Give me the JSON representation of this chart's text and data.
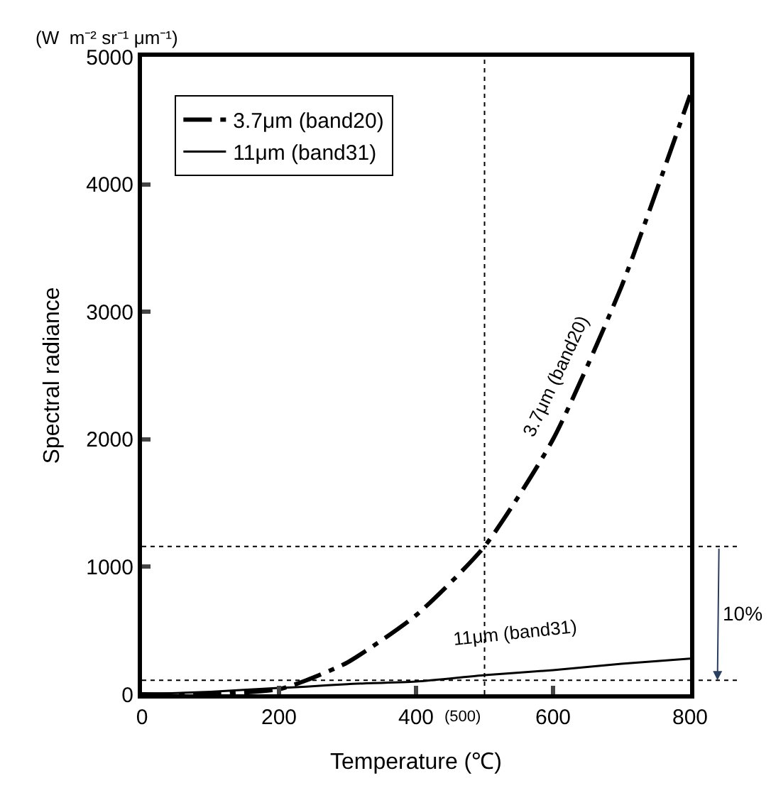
{
  "chart_data": {
    "type": "line",
    "xlabel": "Temperature (℃)",
    "ylabel": "Spectral radiance",
    "x": [
      0,
      100,
      200,
      240,
      300,
      400,
      500,
      600,
      700,
      800
    ],
    "series": [
      {
        "name": "3.7μm (band20)",
        "color": "#000000",
        "line_style": "dashed",
        "values": [
          0,
          0,
          40,
          110,
          250,
          620,
          1160,
          2000,
          3200,
          4700
        ]
      },
      {
        "name": "11μm (band31)",
        "color": "#000000",
        "line_style": "solid",
        "values": [
          0,
          20,
          50,
          60,
          80,
          100,
          150,
          190,
          240,
          280
        ]
      }
    ],
    "xlim": [
      0,
      800
    ],
    "xticks": [
      0,
      200,
      400,
      600,
      800
    ],
    "ylim": [
      0,
      5000
    ],
    "yticks": [
      0,
      1000,
      2000,
      3000,
      4000,
      5000
    ],
    "ref_lines": [
      {
        "axis": "y",
        "value": 110,
        "label": null,
        "color": "#000000",
        "line_style": "dotted"
      },
      {
        "axis": "y",
        "value": 1160,
        "label": null,
        "color": "#000000",
        "line_style": "dotted"
      },
      {
        "axis": "x",
        "value": 500,
        "label": "(500)",
        "color": "#000000",
        "line_style": "dotted"
      }
    ],
    "annotations": [
      "(W  m⁻² sr⁻¹ μm⁻¹)",
      "3.7μm (band20)",
      "11μm (band31)",
      "10%"
    ],
    "legend": "top left",
    "marker": "none"
  }
}
